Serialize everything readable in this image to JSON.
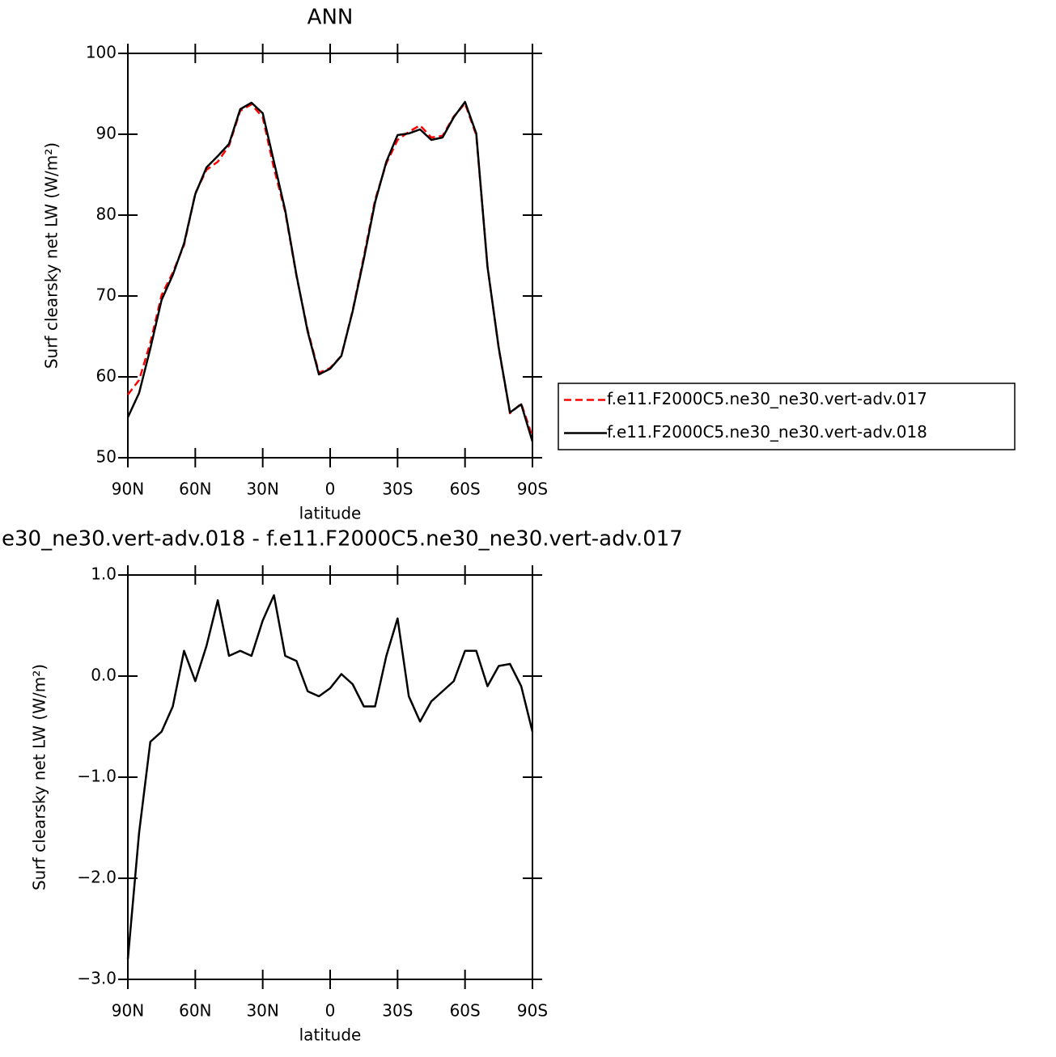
{
  "chart_data": [
    {
      "type": "line",
      "title": "ANN",
      "xlabel": "latitude",
      "ylabel": "Surf clearsky net LW (W/m²)",
      "x": [
        90,
        85,
        80,
        75,
        70,
        65,
        60,
        55,
        50,
        45,
        40,
        35,
        30,
        25,
        20,
        15,
        10,
        5,
        0,
        -5,
        -10,
        -15,
        -20,
        -25,
        -30,
        -35,
        -40,
        -45,
        -50,
        -55,
        -60,
        -65,
        -70,
        -75,
        -80,
        -85,
        -90
      ],
      "xlim": [
        90,
        -90
      ],
      "xticks": [
        {
          "value": 90,
          "label": "90N"
        },
        {
          "value": 60,
          "label": "60N"
        },
        {
          "value": 30,
          "label": "30N"
        },
        0,
        {
          "value": -30,
          "label": "30S"
        },
        {
          "value": -60,
          "label": "60S"
        },
        {
          "value": -90,
          "label": "90S"
        }
      ],
      "ylim": [
        50,
        100
      ],
      "yticks": [
        50,
        60,
        70,
        80,
        90,
        100
      ],
      "legend": "right",
      "series": [
        {
          "name": "f.e11.F2000C5.ne30_ne30.vert-adv.017",
          "color": "#ff0000",
          "dash": true,
          "values": [
            57.8,
            59.6,
            64.2,
            70.1,
            72.9,
            76.3,
            82.7,
            85.6,
            86.6,
            88.6,
            92.9,
            93.7,
            92.1,
            85.8,
            80.4,
            72.5,
            65.8,
            60.5,
            61.1,
            62.6,
            68.2,
            74.9,
            81.9,
            86.4,
            89.3,
            90.3,
            91.1,
            89.6,
            89.8,
            92.2,
            93.8,
            89.9,
            73.7,
            63.5,
            55.5,
            56.7,
            52.6
          ]
        },
        {
          "name": "f.e11.F2000C5.ne30_ne30.vert-adv.018",
          "color": "#000000",
          "dash": false,
          "values": [
            55.0,
            58.0,
            63.5,
            69.5,
            72.6,
            76.5,
            82.6,
            85.9,
            87.3,
            88.8,
            93.1,
            93.9,
            92.6,
            86.6,
            80.6,
            72.6,
            65.6,
            60.3,
            61.0,
            62.6,
            68.1,
            74.6,
            81.6,
            86.6,
            89.9,
            90.1,
            90.6,
            89.3,
            89.6,
            92.1,
            94.0,
            90.1,
            73.6,
            63.6,
            55.6,
            56.6,
            52.0
          ]
        }
      ]
    },
    {
      "type": "line",
      "title": "e30_ne30.vert-adv.018 - f.e11.F2000C5.ne30_ne30.vert-adv.017",
      "xlabel": "latitude",
      "ylabel": "Surf clearsky net LW (W/m²)",
      "x": [
        90,
        85,
        80,
        75,
        70,
        65,
        60,
        55,
        50,
        45,
        40,
        35,
        30,
        25,
        20,
        15,
        10,
        5,
        0,
        -5,
        -10,
        -15,
        -20,
        -25,
        -30,
        -35,
        -40,
        -45,
        -50,
        -55,
        -60,
        -65,
        -70,
        -75,
        -80,
        -85,
        -90
      ],
      "xlim": [
        90,
        -90
      ],
      "xticks": [
        {
          "value": 90,
          "label": "90N"
        },
        {
          "value": 60,
          "label": "60N"
        },
        {
          "value": 30,
          "label": "30N"
        },
        0,
        {
          "value": -30,
          "label": "30S"
        },
        {
          "value": -60,
          "label": "60S"
        },
        {
          "value": -90,
          "label": "90S"
        }
      ],
      "ylim": [
        -3,
        1
      ],
      "yticks": [
        {
          "value": -3,
          "label": "−3.0"
        },
        {
          "value": -2,
          "label": "−2.0"
        },
        {
          "value": -1,
          "label": "−1.0"
        },
        {
          "value": 0,
          "label": "0.0"
        },
        {
          "value": 1,
          "label": "1.0"
        }
      ],
      "series": [
        {
          "color": "#000000",
          "dash": false,
          "values": [
            -2.8,
            -1.55,
            -0.65,
            -0.55,
            -0.3,
            0.25,
            -0.05,
            0.3,
            0.75,
            0.2,
            0.25,
            0.2,
            0.55,
            0.8,
            0.2,
            0.15,
            -0.15,
            -0.2,
            -0.12,
            0.02,
            -0.08,
            -0.3,
            -0.3,
            0.2,
            0.57,
            -0.2,
            -0.45,
            -0.25,
            -0.15,
            -0.05,
            0.25,
            0.25,
            -0.1,
            0.1,
            0.12,
            -0.1,
            -0.55
          ]
        }
      ]
    }
  ]
}
